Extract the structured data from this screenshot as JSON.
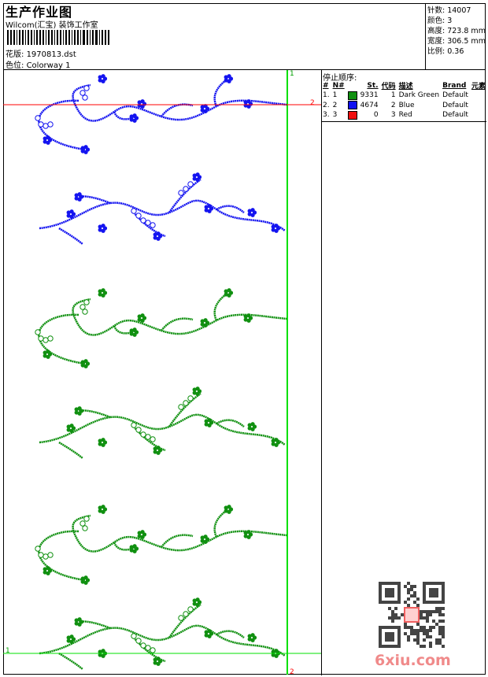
{
  "header": {
    "title": "生产作业图",
    "company": "Wilcom(汇宝) 装饰工作室",
    "design_label": "花版:",
    "design_value": "1970813.dst",
    "colorway_label": "色位:",
    "colorway_value": "Colorway 1"
  },
  "info": {
    "stitches": "针数: 14007",
    "colors": "颜色: 3",
    "height": "高度: 723.8 mm",
    "width": "宽度: 306.5 mm",
    "scale": "比例: 0.36"
  },
  "stop_sequence": {
    "title": "停止顺序:",
    "columns": [
      "#",
      "N#",
      "St.",
      "代码",
      "描述",
      "Brand",
      "元素"
    ],
    "rows": [
      {
        "num": "1.",
        "n": "1",
        "color": "#109010",
        "st": "9331",
        "code": "1",
        "desc": "Dark Green",
        "brand": "Default"
      },
      {
        "num": "2.",
        "n": "2",
        "color": "#1010f0",
        "st": "4674",
        "code": "2",
        "desc": "Blue",
        "brand": "Default"
      },
      {
        "num": "3.",
        "n": "3",
        "color": "#f01010",
        "st": "0",
        "code": "3",
        "desc": "Red",
        "brand": "Default"
      }
    ]
  },
  "markers": {
    "v_top": "1",
    "v_bottom": "2",
    "h_red": "2",
    "h_green": "1"
  },
  "watermark": "6xiu.com",
  "colors": {
    "green": "#109010",
    "blue": "#1414f0",
    "red": "#ff0000",
    "guide_green": "#00e000"
  }
}
